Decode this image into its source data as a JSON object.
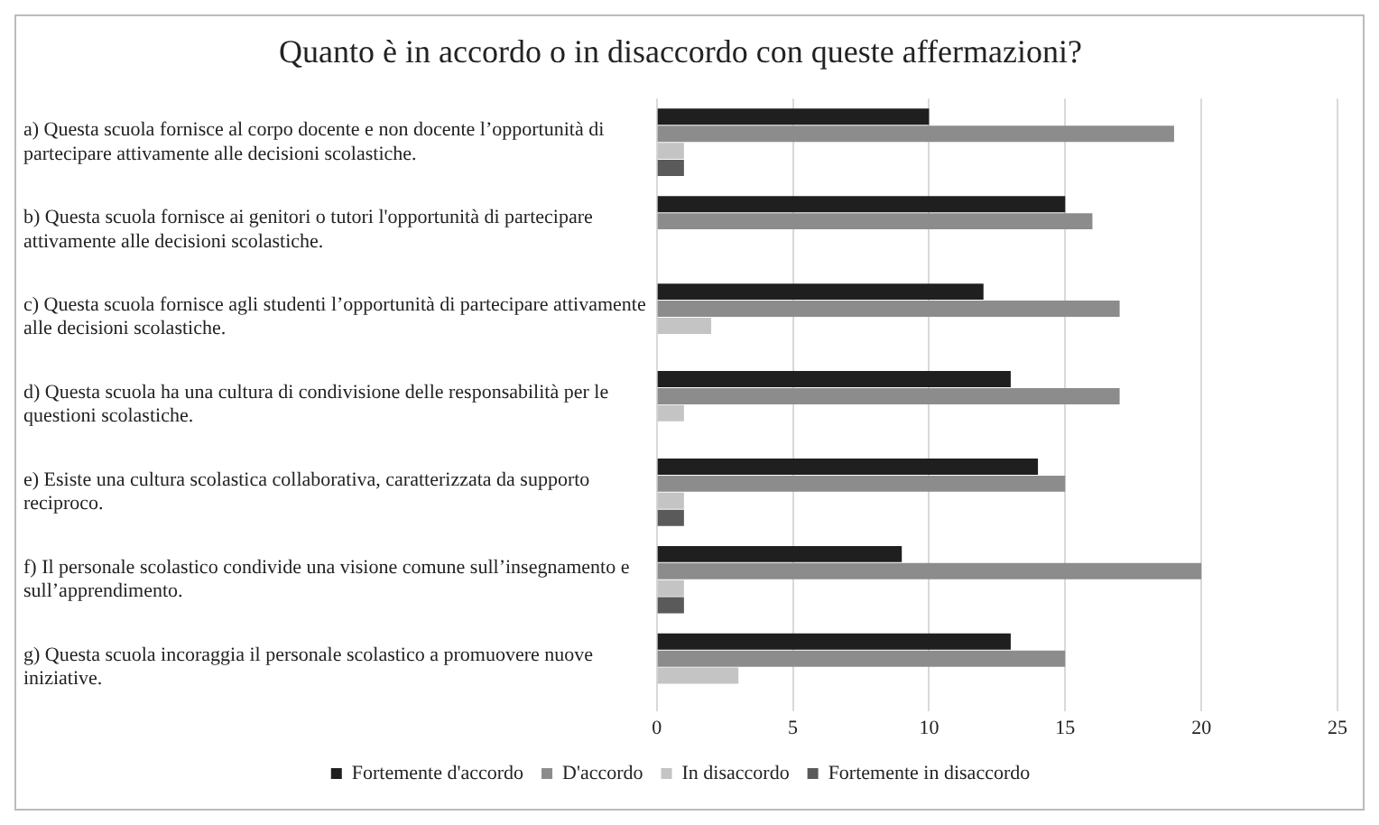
{
  "chart_data": {
    "type": "bar",
    "orientation": "horizontal",
    "title": "Quanto è in accordo o in disaccordo con queste affermazioni?",
    "categories": [
      "a) Questa scuola fornisce al corpo docente e non docente l’opportunità di partecipare attivamente alle decisioni scolastiche.",
      "b) Questa scuola fornisce ai genitori o tutori l'opportunità di partecipare attivamente alle decisioni scolastiche.",
      "c) Questa scuola fornisce agli studenti l’opportunità di partecipare attivamente alle decisioni scolastiche.",
      "d) Questa scuola ha una cultura di condivisione delle responsabilità per le questioni scolastiche.",
      "e) Esiste una cultura scolastica collaborativa, caratterizzata da supporto reciproco.",
      "f) Il personale scolastico condivide una visione comune sull’insegnamento e sull’apprendimento.",
      "g) Questa scuola incoraggia il personale scolastico a promuovere nuove iniziative."
    ],
    "series": [
      {
        "name": "Fortemente d'accordo",
        "color": "#1f1f1f",
        "values": [
          10,
          15,
          12,
          13,
          14,
          9,
          13
        ]
      },
      {
        "name": "D'accordo",
        "color": "#8c8c8c",
        "values": [
          19,
          16,
          17,
          17,
          15,
          20,
          15
        ]
      },
      {
        "name": "In disaccordo",
        "color": "#c4c4c4",
        "values": [
          1,
          0,
          2,
          1,
          1,
          1,
          3
        ]
      },
      {
        "name": "Fortemente in disaccordo",
        "color": "#5a5a5a",
        "values": [
          1,
          0,
          0,
          0,
          1,
          1,
          0
        ]
      }
    ],
    "xlim": [
      0,
      25
    ],
    "xticks": [
      0,
      5,
      10,
      15,
      20,
      25
    ],
    "grid": "x",
    "legend": "bottom"
  }
}
